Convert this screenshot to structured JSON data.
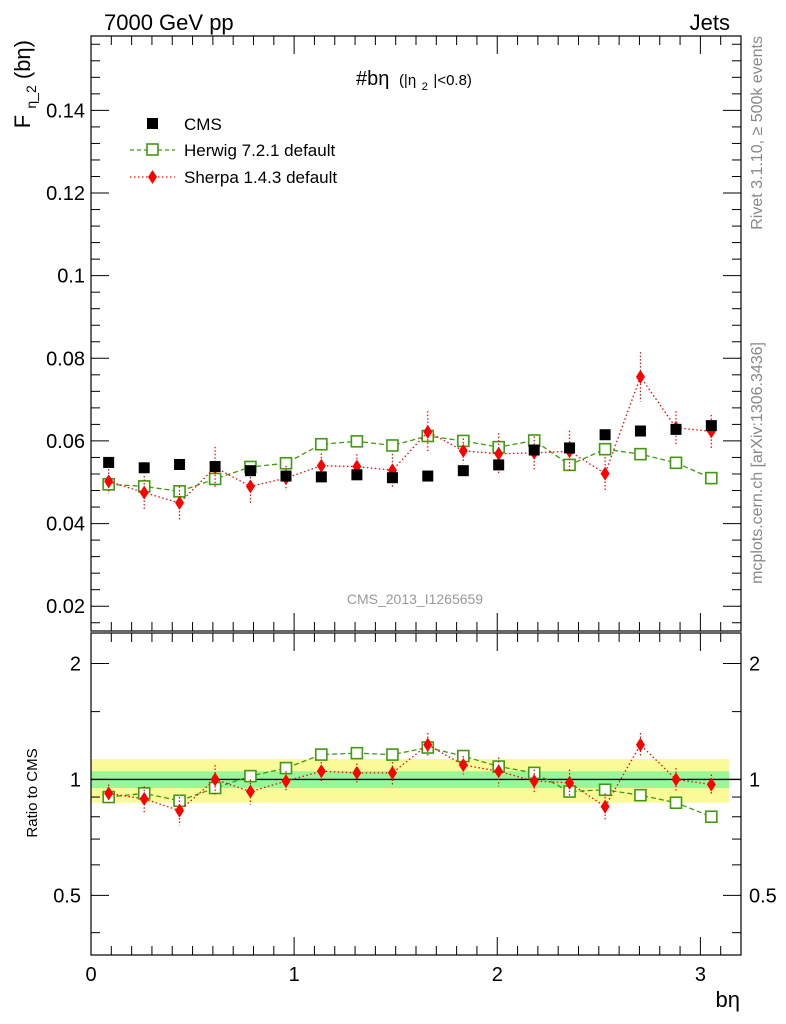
{
  "header": {
    "left": "7000 GeV pp",
    "right": "Jets"
  },
  "side_labels": {
    "rivet": "Rivet 3.1.10, ≥ 500k events",
    "mcplots": "mcplots.cern.ch [arXiv:1306.3436]"
  },
  "watermark": "CMS_2013_I1265659",
  "plot_title": {
    "main": "#bη",
    "sub_open": "(|η",
    "sub_index": "2",
    "sub_close": "|<0.8)"
  },
  "colors": {
    "cms": "#000000",
    "herwig": "#3f9a10",
    "sherpa": "#ff0000",
    "band_inner": "#98f898",
    "band_outer": "#fafa98"
  },
  "chart_data": [
    {
      "type": "scatter",
      "panel": "main",
      "ylabel_main": "F",
      "ylabel_sub": "η_2",
      "ylabel_tail": "(bη)",
      "xlim": [
        0,
        3.2
      ],
      "ylim": [
        0.014,
        0.158
      ],
      "yticks": [
        0.02,
        0.04,
        0.06,
        0.08,
        0.1,
        0.12,
        0.14
      ],
      "ytick_labels": [
        "0.02",
        "0.04",
        "0.06",
        "0.08",
        "0.1",
        "0.12",
        "0.14"
      ],
      "legend": {
        "placement": "top-left",
        "entries": [
          "CMS",
          "Herwig 7.2.1 default",
          "Sherpa 1.4.3 default"
        ]
      },
      "x": [
        0.087,
        0.262,
        0.436,
        0.611,
        0.785,
        0.96,
        1.134,
        1.309,
        1.484,
        1.658,
        1.833,
        2.007,
        2.182,
        2.356,
        2.531,
        2.705,
        2.88,
        3.054
      ],
      "series": [
        {
          "name": "CMS",
          "values": [
            0.0548,
            0.0535,
            0.0543,
            0.0538,
            0.0528,
            0.0515,
            0.0513,
            0.0518,
            0.0511,
            0.0515,
            0.0528,
            0.0542,
            0.0578,
            0.0583,
            0.0615,
            0.0624,
            0.0628,
            0.0637
          ]
        },
        {
          "name": "Herwig 7.2.1 default",
          "values": [
            0.0495,
            0.049,
            0.0478,
            0.0508,
            0.0537,
            0.0546,
            0.0592,
            0.0599,
            0.0589,
            0.0612,
            0.06,
            0.0585,
            0.0601,
            0.0542,
            0.058,
            0.0568,
            0.0547,
            0.051
          ],
          "err": [
            0.0012,
            0.0012,
            0.0012,
            0.0012,
            0.0012,
            0.0012,
            0.0012,
            0.0012,
            0.0012,
            0.0012,
            0.0012,
            0.0012,
            0.0012,
            0.0012,
            0.0012,
            0.0012,
            0.0012,
            0.0012
          ]
        },
        {
          "name": "Sherpa 1.4.3 default",
          "values": [
            0.0502,
            0.0475,
            0.045,
            0.0536,
            0.049,
            0.051,
            0.054,
            0.0538,
            0.0529,
            0.0622,
            0.0576,
            0.0569,
            0.0571,
            0.0575,
            0.0521,
            0.0755,
            0.0632,
            0.0623
          ],
          "err": [
            0.003,
            0.004,
            0.004,
            0.005,
            0.004,
            0.003,
            0.003,
            0.003,
            0.004,
            0.005,
            0.003,
            0.005,
            0.004,
            0.005,
            0.004,
            0.006,
            0.004,
            0.004
          ]
        }
      ]
    },
    {
      "type": "scatter",
      "panel": "ratio",
      "ylabel": "Ratio to CMS",
      "xlabel": "bη",
      "xlim": [
        0,
        3.2
      ],
      "ylim": [
        0.35,
        2.4
      ],
      "y_scale": "log",
      "xticks": [
        0,
        1,
        2,
        3
      ],
      "xtick_labels": [
        "0",
        "1",
        "2",
        "3"
      ],
      "yticks": [
        0.5,
        1,
        2
      ],
      "ytick_labels": [
        "0.5",
        "1",
        "2"
      ],
      "band_inner_half_width": 0.05,
      "band_outer_half_width": 0.13,
      "x": [
        0.087,
        0.262,
        0.436,
        0.611,
        0.785,
        0.96,
        1.134,
        1.309,
        1.484,
        1.658,
        1.833,
        2.007,
        2.182,
        2.356,
        2.531,
        2.705,
        2.88,
        3.054
      ],
      "series": [
        {
          "name": "Herwig 7.2.1 default",
          "values": [
            0.9,
            0.92,
            0.88,
            0.95,
            1.02,
            1.07,
            1.16,
            1.17,
            1.16,
            1.21,
            1.15,
            1.08,
            1.04,
            0.93,
            0.94,
            0.91,
            0.87,
            0.8
          ],
          "err": [
            0.02,
            0.02,
            0.02,
            0.02,
            0.02,
            0.02,
            0.02,
            0.02,
            0.02,
            0.02,
            0.02,
            0.02,
            0.02,
            0.02,
            0.02,
            0.02,
            0.02,
            0.02
          ]
        },
        {
          "name": "Sherpa 1.4.3 default",
          "values": [
            0.92,
            0.89,
            0.83,
            1.0,
            0.93,
            0.99,
            1.05,
            1.04,
            1.04,
            1.23,
            1.09,
            1.05,
            0.99,
            0.98,
            0.85,
            1.23,
            1.0,
            0.97
          ],
          "err": [
            0.05,
            0.07,
            0.07,
            0.09,
            0.07,
            0.06,
            0.06,
            0.06,
            0.07,
            0.09,
            0.06,
            0.09,
            0.07,
            0.08,
            0.07,
            0.09,
            0.07,
            0.06
          ]
        }
      ]
    }
  ]
}
